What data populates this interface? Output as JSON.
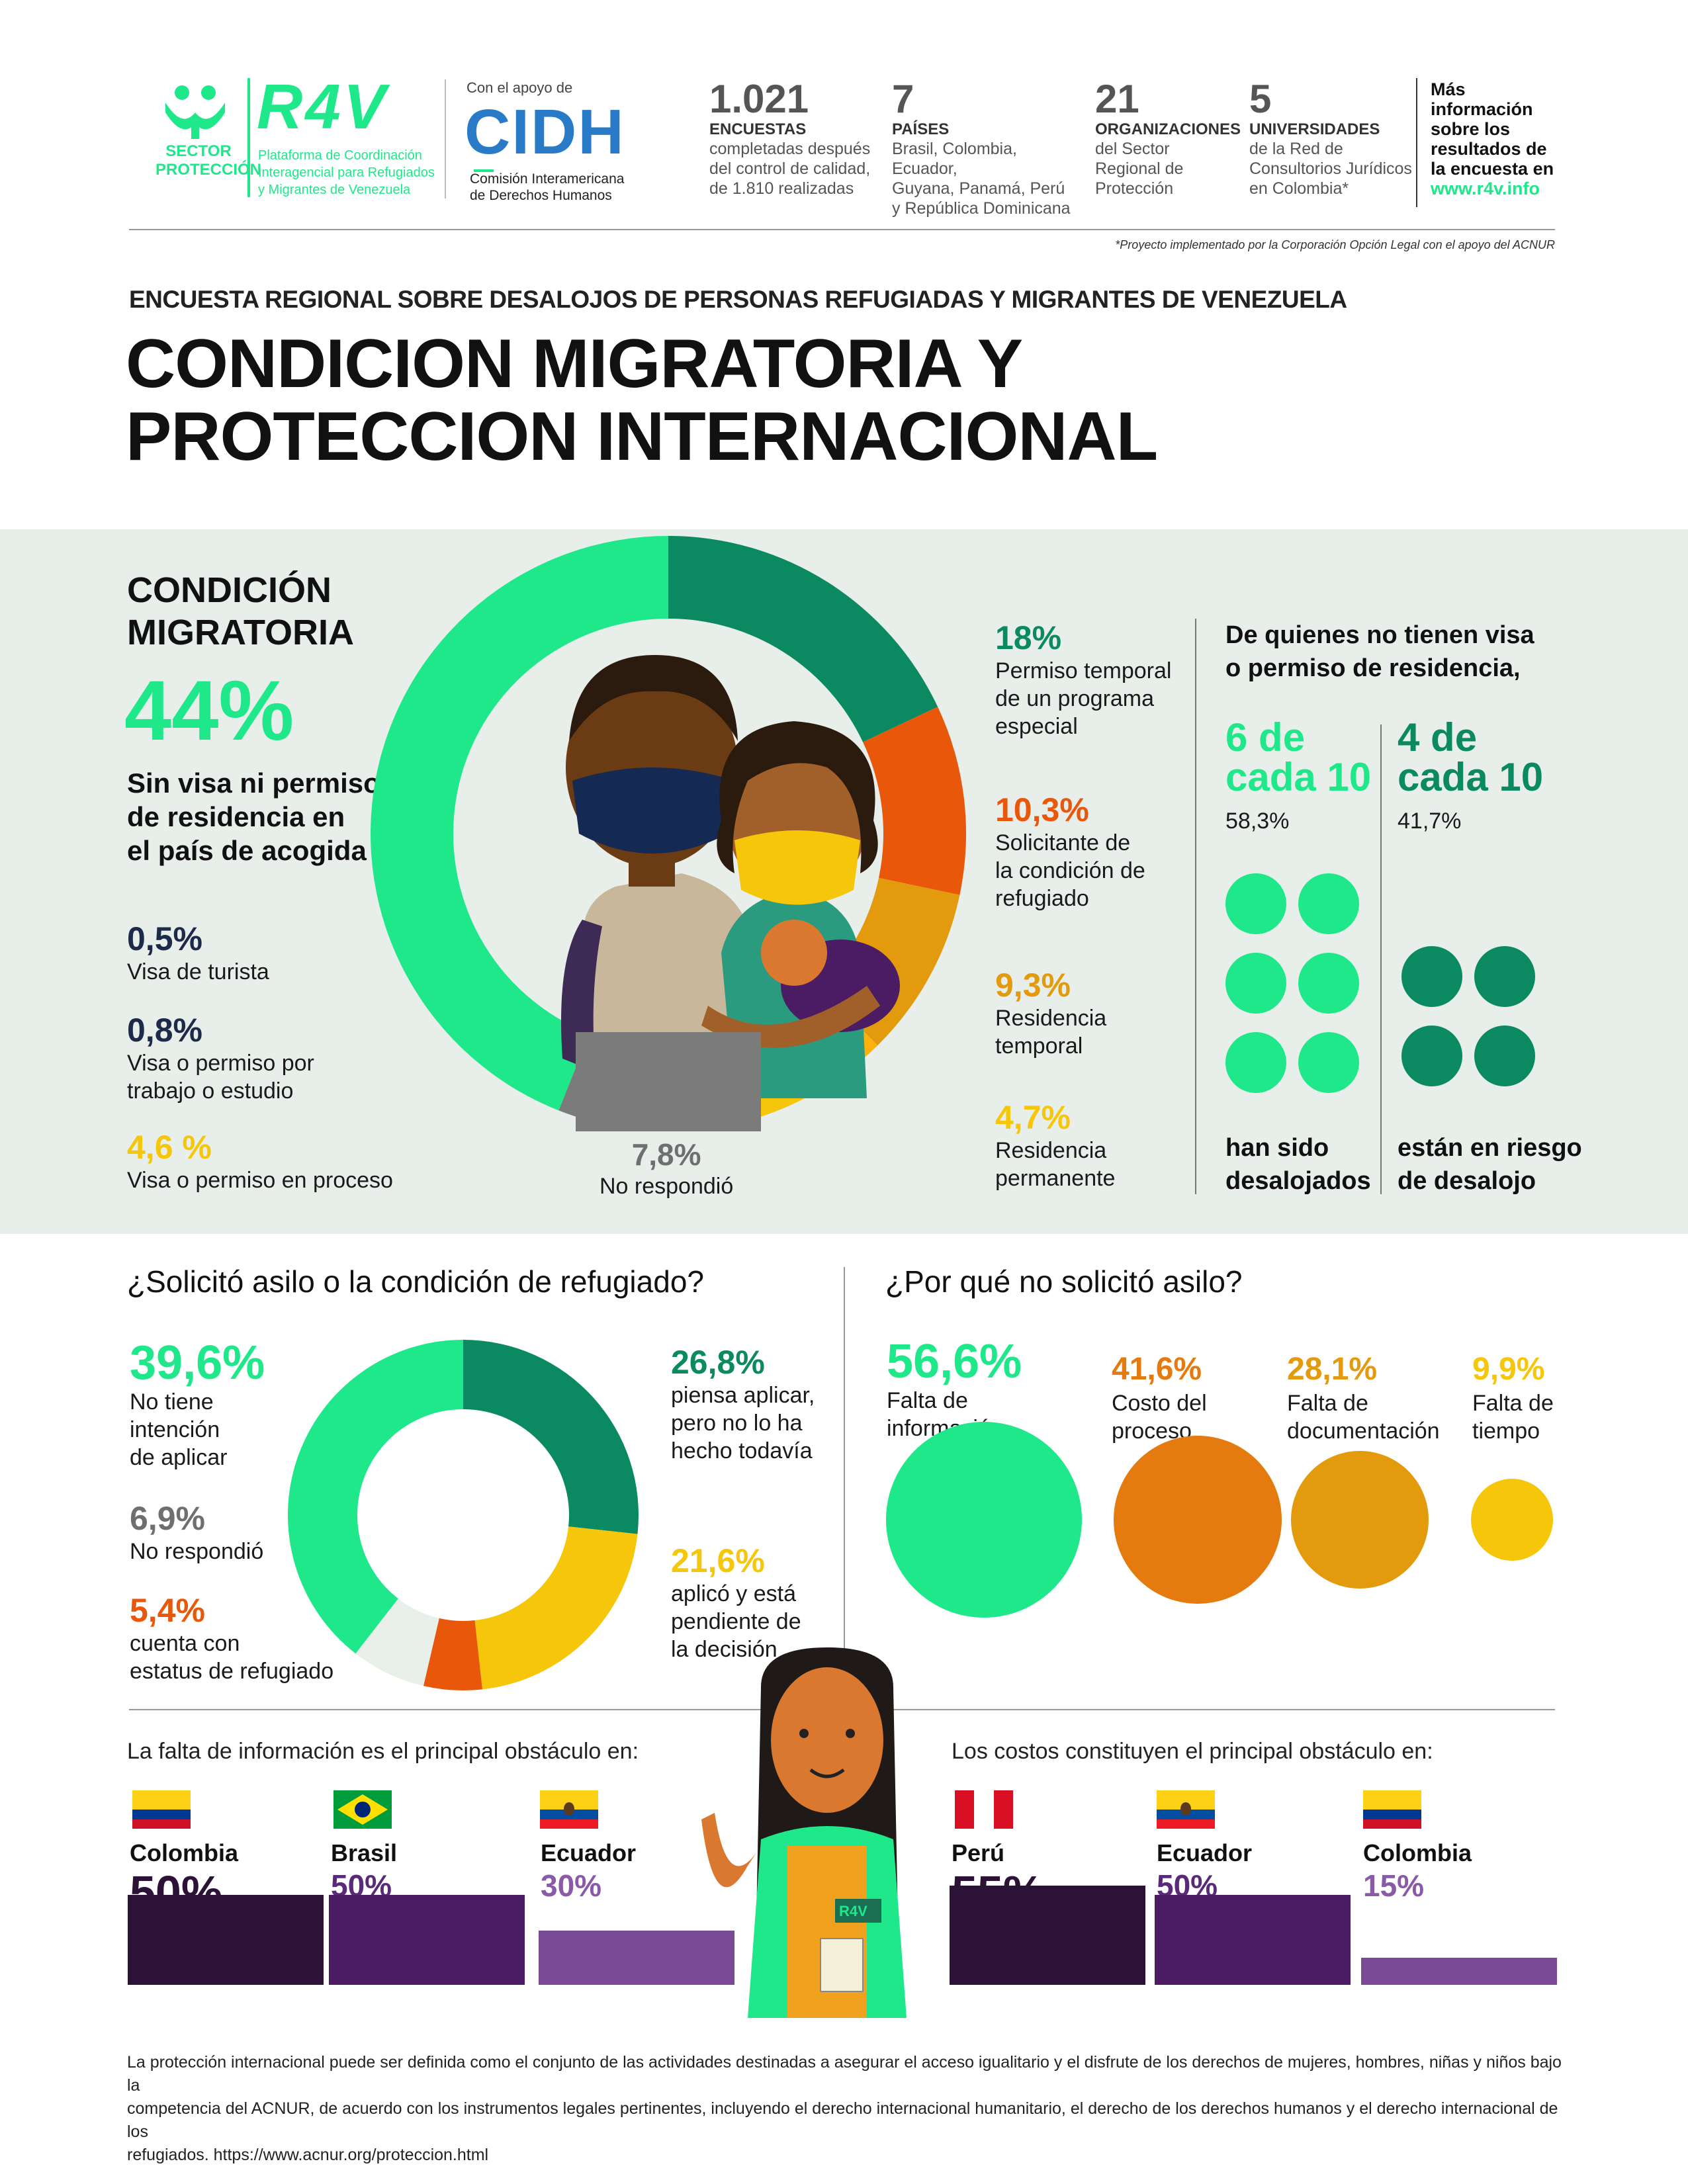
{
  "header": {
    "sector_label_1": "SECTOR",
    "sector_label_2": "PROTECCIÓN",
    "r4v_logo": "R4V",
    "r4v_desc_1": "Plataforma de Coordinación",
    "r4v_desc_2": "Interagencial para Refugiados",
    "r4v_desc_3": "y Migrantes de Venezuela",
    "support_label": "Con el apoyo de",
    "cidh_logo": "CIDH",
    "cidh_desc_1": "Comisión Interamericana",
    "cidh_desc_2": "de Derechos Humanos",
    "stats": [
      {
        "num": "1.021",
        "title": "ENCUESTAS",
        "l1": "completadas después",
        "l2": "del control de calidad,",
        "l3": "de 1.810 realizadas"
      },
      {
        "num": "7",
        "title": "PAÍSES",
        "l1": "Brasil, Colombia, Ecuador,",
        "l2": "Guyana, Panamá, Perú",
        "l3": "y República Dominicana"
      },
      {
        "num": "21",
        "title": "ORGANIZACIONES",
        "l1": "del Sector",
        "l2": "Regional de",
        "l3": "Protección"
      },
      {
        "num": "5",
        "title": "UNIVERSIDADES",
        "l1": "de la Red de",
        "l2": "Consultorios Jurídicos",
        "l3": "en Colombia*"
      }
    ],
    "more_1": "Más",
    "more_2": "información",
    "more_3": "sobre los",
    "more_4": "resultados de",
    "more_5": "la encuesta en",
    "more_link": "www.r4v.info",
    "footnote": "*Proyecto implementado por la Corporación Opción Legal con el apoyo del ACNUR"
  },
  "survey_title": "ENCUESTA REGIONAL SOBRE DESALOJOS DE PERSONAS REFUGIADAS Y MIGRANTES DE VENEZUELA",
  "main_title_1": "CONDICION MIGRATORIA Y",
  "main_title_2": "PROTECCION INTERNACIONAL",
  "condicion": {
    "heading_1": "CONDICIÓN",
    "heading_2": "MIGRATORIA",
    "main_pct": "44%",
    "main_l1": "Sin visa ni permiso",
    "main_l2": "de residencia en",
    "main_l3": "el país de acogida",
    "left_items": [
      {
        "pct": "0,5%",
        "l1": "Visa de turista",
        "l2": ""
      },
      {
        "pct": "0,8%",
        "l1": "Visa o permiso por",
        "l2": "trabajo o estudio"
      },
      {
        "pct": "4,6 %",
        "l1": "Visa o permiso en proceso",
        "l2": ""
      }
    ],
    "no_resp_pct": "7,8%",
    "no_resp_label": "No respondió",
    "right_items": [
      {
        "pct": "18%",
        "l1": "Permiso temporal",
        "l2": "de un programa",
        "l3": "especial"
      },
      {
        "pct": "10,3%",
        "l1": "Solicitante de",
        "l2": "la condición de",
        "l3": "refugiado"
      },
      {
        "pct": "9,3%",
        "l1": "Residencia",
        "l2": "temporal",
        "l3": ""
      },
      {
        "pct": "4,7%",
        "l1": "Residencia",
        "l2": "permanente",
        "l3": ""
      }
    ],
    "novisa_heading_1": "De quienes no tienen visa",
    "novisa_heading_2": "o permiso de residencia,",
    "six_1": "6 de",
    "six_2": "cada 10",
    "six_pct": "58,3%",
    "six_label_1": "han sido",
    "six_label_2": "desalojados",
    "four_1": "4 de",
    "four_2": "cada 10",
    "four_pct": "41,7%",
    "four_label_1": "están en riesgo",
    "four_label_2": "de desalojo"
  },
  "donut_chart": {
    "chart_data": {
      "type": "pie",
      "title": "Condición migratoria",
      "categories": [
        "Sin visa ni permiso de residencia",
        "Permiso temporal de un programa especial",
        "Solicitante de la condición de refugiado",
        "Residencia temporal",
        "Residencia permanente",
        "Visa o permiso en proceso",
        "Visa o permiso por trabajo o estudio",
        "Visa de turista",
        "No respondió"
      ],
      "values": [
        44,
        18,
        10.3,
        9.3,
        4.7,
        4.6,
        0.8,
        0.5,
        7.8
      ],
      "colors": [
        "#1ee88a",
        "#0b8a62",
        "#e8570a",
        "#e39a0c",
        "#fdb10b",
        "#f5c60a",
        "#1e2a4a",
        "#2b1d3a",
        "#7b7b7b"
      ]
    }
  },
  "asylum": {
    "heading": "¿Solicitó asilo o  la condición de refugiado?",
    "items_left": [
      {
        "pct": "39,6%",
        "l1": "No tiene",
        "l2": "intención",
        "l3": "de aplicar"
      },
      {
        "pct": "6,9%",
        "l1": "No respondió",
        "l2": "",
        "l3": ""
      },
      {
        "pct": "5,4%",
        "l1": "cuenta con",
        "l2": "estatus de refugiado",
        "l3": ""
      }
    ],
    "items_right": [
      {
        "pct": "26,8%",
        "l1": "piensa aplicar,",
        "l2": "pero no lo ha",
        "l3": "hecho todavía"
      },
      {
        "pct": "21,6%",
        "l1": "aplicó y está",
        "l2": "pendiente de",
        "l3": "la decisión"
      }
    ],
    "chart_data": {
      "type": "pie",
      "title": "¿Solicitó asilo o la condición de refugiado?",
      "categories": [
        "piensa aplicar, pero no lo ha hecho todavía",
        "aplicó y está pendiente de la decisión",
        "cuenta con estatus de refugiado",
        "No respondió",
        "No tiene intención de aplicar"
      ],
      "values": [
        26.8,
        21.6,
        5.4,
        6.9,
        39.6
      ],
      "colors": [
        "#0b8a62",
        "#f5c60a",
        "#e8570a",
        "#e9efe9",
        "#1ee88a"
      ]
    }
  },
  "why": {
    "heading": "¿Por qué no solicitó asilo?",
    "chart_data": {
      "type": "bubble",
      "title": "¿Por qué no solicitó asilo?",
      "categories": [
        "Falta de información",
        "Costo del proceso",
        "Falta de documentación",
        "Falta de tiempo"
      ],
      "values": [
        56.6,
        41.6,
        28.1,
        9.9
      ],
      "labels": [
        "56,6%",
        "41,6%",
        "28,1%",
        "9,9%"
      ],
      "label_l1": [
        "Falta de",
        "Costo del",
        "Falta de",
        "Falta de"
      ],
      "label_l2": [
        "información",
        "proceso",
        "documentación",
        "tiempo"
      ],
      "colors": [
        "#1ee88a",
        "#e57a0e",
        "#e39a0c",
        "#f5c60a"
      ]
    }
  },
  "info_obstacle": {
    "heading": "La falta de información es el principal obstáculo en:",
    "chart_data": {
      "type": "bar",
      "categories": [
        "Colombia",
        "Brasil",
        "Ecuador"
      ],
      "values": [
        50,
        50,
        30
      ],
      "labels": [
        "50%",
        "50%",
        "30%"
      ],
      "colors": [
        "#2b1236",
        "#4b1c63",
        "#7a4a96"
      ]
    }
  },
  "cost_obstacle": {
    "heading": "Los costos constituyen el principal obstáculo en:",
    "chart_data": {
      "type": "bar",
      "categories": [
        "Perú",
        "Ecuador",
        "Colombia"
      ],
      "values": [
        55,
        50,
        15
      ],
      "labels": [
        "55%",
        "50%",
        "15%"
      ],
      "colors": [
        "#2b1236",
        "#4b1c63",
        "#7a4a96"
      ]
    }
  },
  "badge_text": "R4V",
  "footer": {
    "l1": "La protección internacional puede ser definida como el conjunto de las actividades destinadas a asegurar el acceso igualitario y el disfrute de los derechos de mujeres, hombres, niñas y niños bajo la",
    "l2": "competencia del ACNUR, de acuerdo con los instrumentos legales pertinentes, incluyendo el derecho internacional humanitario, el derecho de los derechos humanos y el derecho internacional de los",
    "l3": "refugiados. https://www.acnur.org/proteccion.html"
  }
}
